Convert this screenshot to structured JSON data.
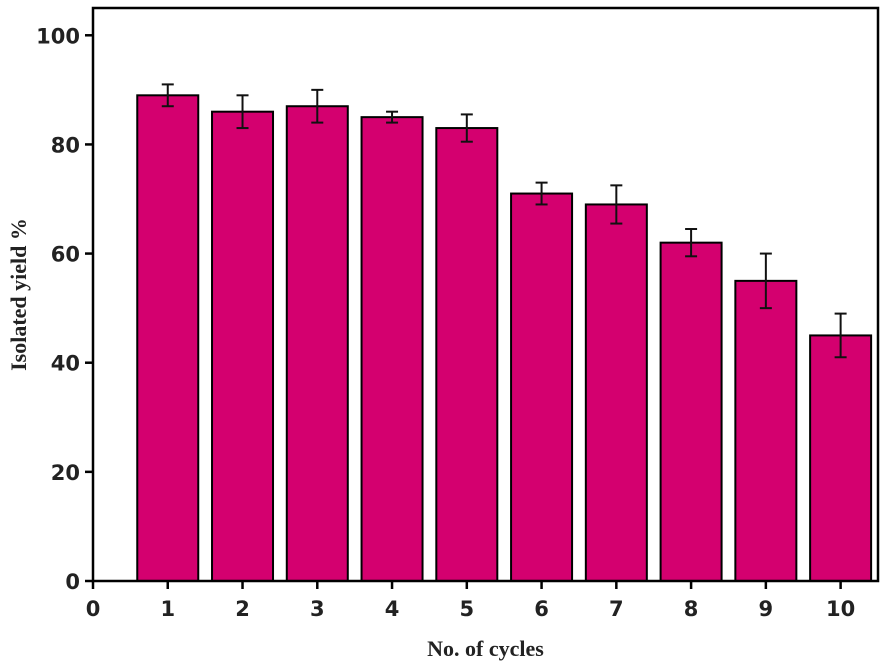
{
  "chart_data": {
    "type": "bar",
    "title": "",
    "xlabel": "No. of cycles",
    "ylabel": "Isolated yield %",
    "categories": [
      "1",
      "2",
      "3",
      "4",
      "5",
      "6",
      "7",
      "8",
      "9",
      "10"
    ],
    "values": [
      89,
      86,
      87,
      85,
      83,
      71,
      69,
      62,
      55,
      45
    ],
    "error_bars": [
      2,
      3,
      3,
      1,
      2.5,
      2,
      3.5,
      2.5,
      5,
      4
    ],
    "xlim": [
      0,
      10.5
    ],
    "ylim": [
      0,
      105
    ],
    "x_ticks": [
      0,
      1,
      2,
      3,
      4,
      5,
      6,
      7,
      8,
      9,
      10
    ],
    "y_ticks": [
      0,
      20,
      40,
      60,
      80,
      100
    ],
    "grid": false,
    "legend": "none",
    "bar_color": "#d4006f",
    "axis_color": "#000000"
  }
}
